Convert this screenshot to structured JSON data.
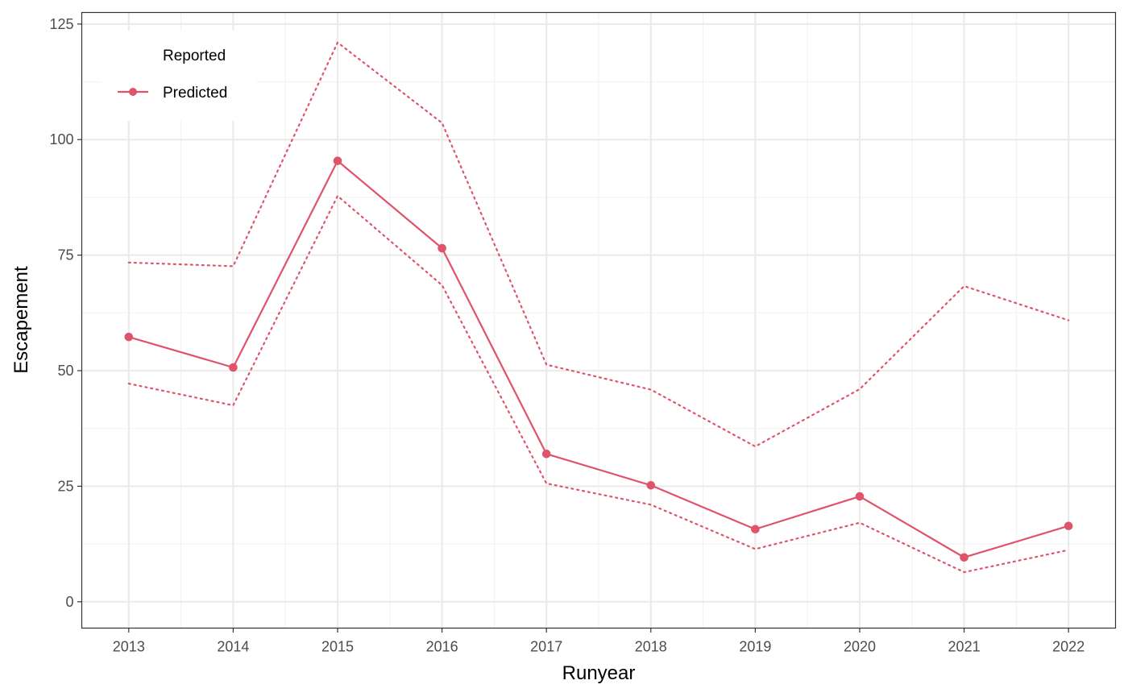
{
  "chart_data": {
    "type": "line",
    "xlabel": "Runyear",
    "ylabel": "Escapement",
    "x": [
      2013,
      2014,
      2015,
      2016,
      2017,
      2018,
      2019,
      2020,
      2021,
      2022
    ],
    "xlim": [
      2012.55,
      2022.45
    ],
    "ylim": [
      -5.7,
      127.5
    ],
    "y_ticks": [
      0,
      25,
      50,
      75,
      100,
      125
    ],
    "grid": true,
    "legend_position": "top-left",
    "series": [
      {
        "name": "Predicted",
        "color": "#DF536B",
        "style": "solid-with-points",
        "values": [
          57.3,
          50.7,
          95.4,
          76.5,
          32.0,
          25.2,
          15.7,
          22.8,
          9.6,
          16.4
        ]
      },
      {
        "role": "upper-bound",
        "color": "#DF536B",
        "style": "dotted",
        "values": [
          73.4,
          72.6,
          121.0,
          103.6,
          51.3,
          45.9,
          33.6,
          46.0,
          68.3,
          60.9
        ]
      },
      {
        "role": "lower-bound",
        "color": "#DF536B",
        "style": "dotted",
        "values": [
          47.2,
          42.5,
          87.8,
          68.5,
          25.6,
          21.0,
          11.4,
          17.1,
          6.4,
          11.2
        ]
      }
    ],
    "legend": {
      "title": "Reported",
      "entries": [
        "Predicted"
      ]
    }
  }
}
